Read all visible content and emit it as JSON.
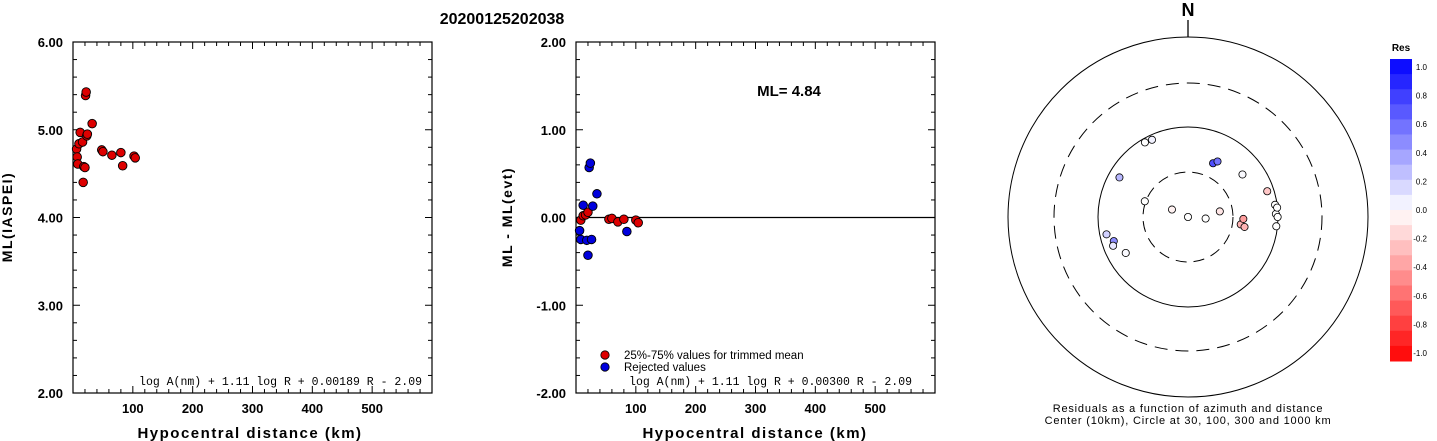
{
  "title": "20200125202038",
  "colors": {
    "red": "#dd0000",
    "blue": "#0000dd",
    "axis": "#000000"
  },
  "chart_data": [
    {
      "type": "scatter",
      "xlabel": "Hypocentral distance (km)",
      "ylabel": "ML(IASPEI)",
      "xlim": [
        0,
        600
      ],
      "ylim": [
        2.0,
        6.0
      ],
      "xticks": [
        "100",
        "200",
        "300",
        "400",
        "500"
      ],
      "yticks": [
        "2.00",
        "3.00",
        "4.00",
        "5.00",
        "6.00"
      ],
      "formula": "log A(nm) + 1.11 log R + 0.00189 R - 2.09",
      "series": [
        {
          "color": "#dd0000",
          "points": [
            [
              6,
              4.78
            ],
            [
              7,
              4.69
            ],
            [
              8,
              4.61
            ],
            [
              10,
              4.84
            ],
            [
              12,
              4.97
            ],
            [
              16,
              4.86
            ],
            [
              17,
              4.4
            ],
            [
              18,
              4.58
            ],
            [
              20,
              4.57
            ],
            [
              21,
              5.39
            ],
            [
              22,
              5.43
            ],
            [
              23,
              4.93
            ],
            [
              24,
              4.95
            ],
            [
              32,
              5.07
            ],
            [
              48,
              4.77
            ],
            [
              50,
              4.75
            ],
            [
              65,
              4.71
            ],
            [
              80,
              4.74
            ],
            [
              83,
              4.59
            ],
            [
              102,
              4.7
            ],
            [
              104,
              4.68
            ]
          ]
        }
      ]
    },
    {
      "type": "scatter",
      "xlabel": "Hypocentral distance (km)",
      "ylabel": "ML - ML(evt)",
      "xlim": [
        0,
        600
      ],
      "ylim": [
        -2.0,
        2.0
      ],
      "xticks": [
        "100",
        "200",
        "300",
        "400",
        "500"
      ],
      "yticks": [
        "-2.00",
        "-1.00",
        "0.00",
        "1.00",
        "2.00"
      ],
      "annotation": "ML= 4.84",
      "formula": "log A(nm) + 1.11 log R + 0.00300 R - 2.09",
      "legend": [
        "25%-75% values for trimmed mean",
        "Rejected values"
      ],
      "hline": 0.0,
      "series": [
        {
          "name": "25%-75% values for trimmed mean",
          "color": "#dd0000",
          "points": [
            [
              8,
              -0.03
            ],
            [
              12,
              0.02
            ],
            [
              16,
              0.03
            ],
            [
              20,
              0.06
            ],
            [
              55,
              -0.02
            ],
            [
              60,
              -0.01
            ],
            [
              70,
              -0.05
            ],
            [
              80,
              -0.02
            ],
            [
              100,
              -0.03
            ],
            [
              104,
              -0.06
            ]
          ]
        },
        {
          "name": "Rejected values",
          "color": "#0000dd",
          "points": [
            [
              6,
              -0.15
            ],
            [
              8,
              -0.25
            ],
            [
              12,
              0.14
            ],
            [
              18,
              -0.26
            ],
            [
              20,
              -0.43
            ],
            [
              22,
              0.57
            ],
            [
              24,
              0.62
            ],
            [
              26,
              -0.25
            ],
            [
              28,
              0.13
            ],
            [
              35,
              0.27
            ],
            [
              85,
              -0.16
            ]
          ]
        }
      ]
    },
    {
      "type": "polar",
      "north_label": "N",
      "caption_line1": "Residuals as a function of azimuth and distance",
      "caption_line2": "Center (10km), Circle at 30, 100, 300 and 1000 km",
      "colorbar_title": "Res",
      "colorbar_ticks": [
        "1.0",
        "0.8",
        "0.6",
        "0.4",
        "0.2",
        "0.0",
        "-0.2",
        "-0.4",
        "-0.6",
        "-0.8",
        "-1.0"
      ],
      "stations": [
        {
          "az": 335,
          "dist": 40,
          "res": 0.05
        },
        {
          "az": 330,
          "dist": 41,
          "res": 0.0
        },
        {
          "az": 300,
          "dist": 34,
          "res": 0.28
        },
        {
          "az": 258,
          "dist": 38,
          "res": 0.18
        },
        {
          "az": 252,
          "dist": 33,
          "res": 0.45
        },
        {
          "az": 249,
          "dist": 35,
          "res": 0.1
        },
        {
          "az": 240,
          "dist": 28,
          "res": 0.02
        },
        {
          "az": 290,
          "dist": 14,
          "res": 0.0
        },
        {
          "az": 295,
          "dist": 7,
          "res": -0.05
        },
        {
          "az": 25,
          "dist": 20,
          "res": 0.7
        },
        {
          "az": 28,
          "dist": 22,
          "res": 0.55
        },
        {
          "az": 80,
          "dist": 10,
          "res": -0.1
        },
        {
          "az": 150,
          "dist": 4,
          "res": 0.0
        },
        {
          "az": 95,
          "dist": 7,
          "res": 0.0
        },
        {
          "az": 52,
          "dist": 26,
          "res": 0.02
        },
        {
          "az": 98,
          "dist": 17,
          "res": -0.3
        },
        {
          "az": 92,
          "dist": 18,
          "res": -0.38
        },
        {
          "az": 100,
          "dist": 19,
          "res": -0.3
        },
        {
          "az": 72,
          "dist": 38,
          "res": -0.22
        },
        {
          "az": 82,
          "dist": 43,
          "res": 0.0
        },
        {
          "az": 88,
          "dist": 43,
          "res": 0.0
        },
        {
          "az": 84,
          "dist": 45,
          "res": 0.0
        },
        {
          "az": 90,
          "dist": 45,
          "res": 0.0
        },
        {
          "az": 96,
          "dist": 44,
          "res": 0.0
        }
      ]
    }
  ]
}
